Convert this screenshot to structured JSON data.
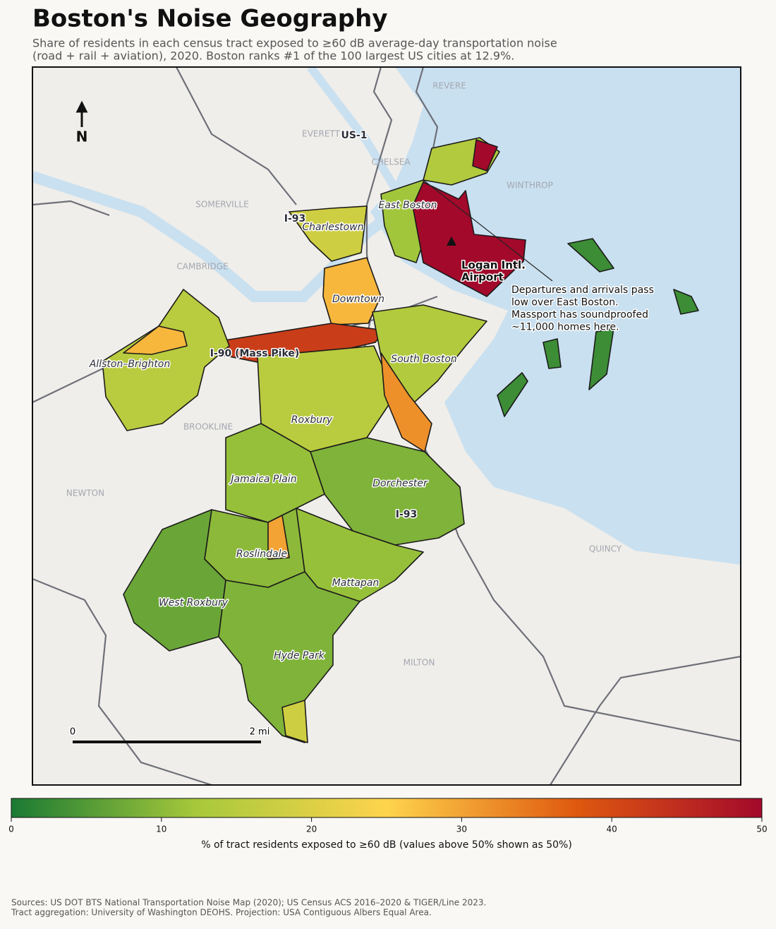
{
  "title": "Boston's Noise Geography",
  "subtitle_lines": [
    "Share of residents in each census tract exposed to ≥60 dB average-day transportation noise",
    "(road + rail + aviation), 2020. Boston ranks #1 of the 100 largest US cities at 12.9%."
  ],
  "map": {
    "place_labels": [
      "REVERE",
      "EVERETT",
      "CHELSEA",
      "WINTHROP",
      "SOMERVILLE",
      "CAMBRIDGE",
      "BROOKLINE",
      "NEWTON",
      "QUINCY",
      "MILTON"
    ],
    "road_labels": [
      "US-1",
      "I-93",
      "I-90 (Mass Pike)",
      "I-93"
    ],
    "neighborhood_labels": [
      "East Boston",
      "Charlestown",
      "Downtown",
      "South Boston",
      "Allston–Brighton",
      "Roxbury",
      "Jamaica Plain",
      "Dorchester",
      "Roslindale",
      "Mattapan",
      "West Roxbury",
      "Hyde Park"
    ],
    "airport_label": [
      "Logan Intl.",
      "Airport"
    ],
    "annotation": [
      "Departures and arrivals pass",
      "low over East Boston.",
      "Massport has soundproofed",
      "~11,000 homes here."
    ],
    "north": "N",
    "scale_labels": [
      "0",
      "2 mi"
    ],
    "tract_values": [
      14,
      50,
      12,
      50,
      18,
      28,
      42,
      14,
      15,
      28,
      15,
      32,
      9,
      11,
      10,
      7,
      11,
      9,
      18,
      30,
      3,
      3,
      3,
      3,
      3
    ]
  },
  "colorbar": {
    "label": "% of tract residents exposed to ≥60 dB (values above 50% shown as 50%)",
    "clim": [
      0,
      50
    ],
    "ticks": [
      0,
      10,
      20,
      30,
      40,
      50
    ],
    "colormap": [
      "#1a7a33",
      "#a8c93b",
      "#fed44c",
      "#df5a0f",
      "#a3092b"
    ]
  },
  "sources": [
    "Sources: US DOT BTS National Transportation Noise Map (2020); US Census ACS 2016–2020 & TIGER/Line 2023.",
    "Tract aggregation: University of Washington DEOHS. Projection: USA Contiguous Albers Equal Area."
  ]
}
